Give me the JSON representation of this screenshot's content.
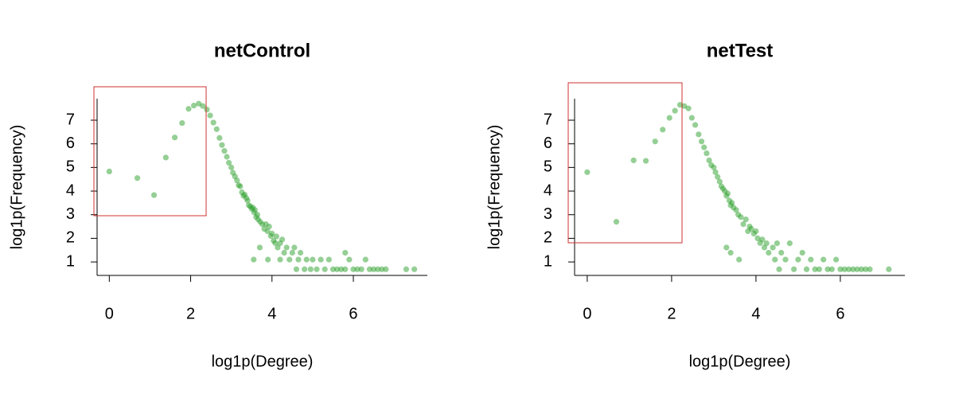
{
  "chart_data": [
    {
      "type": "scatter",
      "title": "netControl",
      "x_label": "log1p(Degree)",
      "y_label": "log1p(Frequency)",
      "color": "#2ca02c",
      "xlim": [
        -0.3,
        7.82
      ],
      "ylim": [
        0.43,
        7.91
      ],
      "xticks": [
        0,
        2,
        4,
        6
      ],
      "yticks": [
        1,
        2,
        3,
        4,
        5,
        6,
        7
      ],
      "x": [
        0,
        0.69,
        1.1,
        1.39,
        1.61,
        1.79,
        1.95,
        2.08,
        2.2,
        2.3,
        2.4,
        2.48,
        2.56,
        2.64,
        2.71,
        2.77,
        2.83,
        2.89,
        2.94,
        3.0,
        3.04,
        3.09,
        3.14,
        3.18,
        3.22,
        3.26,
        3.3,
        3.33,
        3.37,
        3.4,
        3.43,
        3.47,
        3.5,
        3.53,
        3.56,
        3.58,
        3.61,
        3.64,
        3.66,
        3.71,
        3.76,
        3.81,
        3.85,
        3.89,
        3.93,
        3.97,
        4.0,
        4.04,
        4.08,
        4.11,
        4.14,
        4.2,
        4.25,
        4.3,
        4.36,
        4.43,
        4.5,
        4.55,
        4.6,
        4.65,
        4.7,
        4.8,
        4.85,
        4.95,
        5.0,
        5.1,
        5.2,
        5.3,
        5.4,
        5.5,
        5.6,
        5.7,
        5.8,
        5.9,
        6.0,
        6.1,
        6.2,
        6.3,
        6.4,
        6.5,
        6.6,
        6.7,
        6.8,
        7.3,
        7.5,
        3.55,
        3.9,
        4.2,
        3.7,
        5.8
      ],
      "y": [
        4.83,
        4.55,
        3.83,
        5.42,
        6.27,
        6.88,
        7.48,
        7.62,
        7.7,
        7.6,
        7.45,
        7.2,
        6.9,
        6.62,
        6.25,
        5.95,
        5.7,
        5.45,
        5.2,
        5.0,
        4.78,
        4.62,
        4.45,
        4.25,
        4.2,
        3.95,
        3.8,
        3.85,
        3.7,
        3.6,
        3.4,
        3.35,
        3.25,
        3.3,
        3.1,
        3.2,
        2.9,
        3.0,
        2.8,
        2.7,
        2.6,
        2.4,
        2.6,
        2.3,
        2.5,
        2.1,
        2.2,
        1.9,
        1.8,
        2.08,
        1.61,
        1.79,
        1.95,
        1.39,
        1.61,
        1.1,
        1.39,
        1.61,
        0.69,
        1.1,
        1.39,
        0.69,
        1.1,
        0.69,
        1.1,
        0.69,
        1.1,
        0.69,
        1.1,
        0.69,
        0.69,
        0.69,
        0.69,
        1.1,
        0.69,
        0.69,
        0.69,
        1.1,
        0.69,
        0.69,
        0.69,
        0.69,
        0.69,
        0.69,
        0.69,
        1.1,
        1.1,
        1.1,
        1.61,
        1.39
      ]
    },
    {
      "type": "scatter",
      "title": "netTest",
      "x_label": "log1p(Degree)",
      "y_label": "log1p(Frequency)",
      "color": "#2ca02c",
      "xlim": [
        -0.3,
        7.53
      ],
      "ylim": [
        0.43,
        7.91
      ],
      "xticks": [
        0,
        2,
        4,
        6
      ],
      "yticks": [
        1,
        2,
        3,
        4,
        5,
        6,
        7
      ],
      "x": [
        0,
        0.69,
        1.1,
        1.39,
        1.61,
        1.79,
        1.95,
        2.08,
        2.2,
        2.3,
        2.4,
        2.48,
        2.56,
        2.64,
        2.71,
        2.77,
        2.83,
        2.89,
        2.94,
        3.0,
        3.04,
        3.09,
        3.14,
        3.18,
        3.22,
        3.26,
        3.3,
        3.33,
        3.37,
        3.4,
        3.43,
        3.47,
        3.53,
        3.58,
        3.64,
        3.7,
        3.76,
        3.81,
        3.85,
        3.89,
        3.95,
        4.0,
        4.04,
        4.1,
        4.15,
        4.2,
        4.25,
        4.3,
        4.4,
        4.45,
        4.5,
        4.55,
        4.6,
        4.7,
        4.8,
        4.9,
        5.0,
        5.1,
        5.2,
        5.3,
        5.4,
        5.5,
        5.6,
        5.7,
        5.8,
        5.9,
        6.0,
        6.1,
        6.2,
        6.3,
        6.4,
        6.5,
        6.6,
        6.7,
        7.15,
        3.6,
        3.4,
        3.3
      ],
      "y": [
        4.8,
        2.7,
        5.3,
        5.28,
        6.1,
        6.6,
        7.1,
        7.4,
        7.65,
        7.6,
        7.5,
        7.1,
        6.8,
        6.4,
        6.1,
        5.85,
        5.6,
        5.3,
        5.1,
        5.0,
        4.8,
        4.6,
        4.4,
        4.2,
        4.1,
        4.0,
        3.8,
        3.9,
        3.6,
        3.4,
        3.5,
        3.3,
        3.2,
        3.0,
        2.9,
        2.6,
        2.8,
        2.3,
        2.5,
        2.4,
        2.2,
        2.3,
        2.0,
        1.8,
        1.95,
        1.61,
        1.79,
        1.39,
        1.61,
        1.1,
        1.79,
        0.69,
        1.39,
        1.1,
        1.79,
        0.69,
        1.1,
        1.39,
        0.69,
        1.1,
        0.69,
        0.69,
        1.1,
        0.69,
        0.69,
        1.1,
        0.69,
        0.69,
        0.69,
        0.69,
        0.69,
        0.69,
        0.69,
        0.69,
        0.69,
        1.1,
        1.39,
        1.61
      ]
    }
  ]
}
